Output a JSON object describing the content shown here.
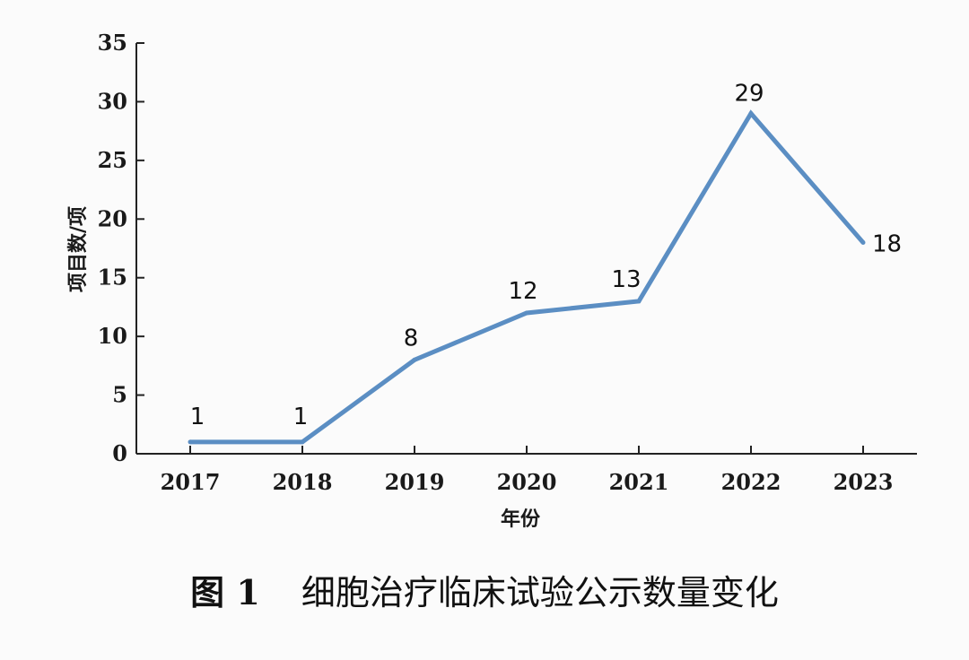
{
  "chart_data": {
    "type": "line",
    "categories": [
      "2017",
      "2018",
      "2019",
      "2020",
      "2021",
      "2022",
      "2023"
    ],
    "series": [
      {
        "values": [
          1,
          1,
          8,
          12,
          13,
          29,
          18
        ]
      }
    ],
    "data_labels": [
      "1",
      "1",
      "8",
      "12",
      "13",
      "29",
      "18"
    ],
    "xlabel": "年份",
    "ylabel": "项目数/项",
    "ylim": [
      0,
      35
    ],
    "yticks": [
      "0",
      "5",
      "10",
      "15",
      "20",
      "25",
      "30",
      "35"
    ],
    "ytick_values": [
      0,
      5,
      10,
      15,
      20,
      25,
      30,
      35
    ],
    "grid": false,
    "line_color": "#5b8ec3"
  },
  "caption": {
    "number": "图 1",
    "text": "细胞治疗临床试验公示数量变化"
  }
}
